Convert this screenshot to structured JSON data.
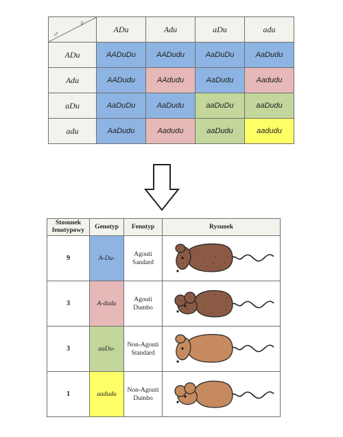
{
  "punnett": {
    "female_symbol": "♀",
    "male_symbol": "♂",
    "col_headers": [
      "ADu",
      "Adu",
      "aDu",
      "adu"
    ],
    "row_headers": [
      "ADu",
      "Adu",
      "aDu",
      "adu"
    ],
    "cells": [
      [
        {
          "text": "AADuDu",
          "color": "blue"
        },
        {
          "text": "AADudu",
          "color": "blue"
        },
        {
          "text": "AaDuDu",
          "color": "blue"
        },
        {
          "text": "AaDudu",
          "color": "blue"
        }
      ],
      [
        {
          "text": "AADudu",
          "color": "blue"
        },
        {
          "text": "AAdudu",
          "color": "pink"
        },
        {
          "text": "AaDudu",
          "color": "blue"
        },
        {
          "text": "Aadudu",
          "color": "pink"
        }
      ],
      [
        {
          "text": "AaDuDu",
          "color": "blue"
        },
        {
          "text": "AaDudu",
          "color": "blue"
        },
        {
          "text": "aaDuDu",
          "color": "green"
        },
        {
          "text": "aaDudu",
          "color": "green"
        }
      ],
      [
        {
          "text": "AaDudu",
          "color": "blue"
        },
        {
          "text": "Aadudu",
          "color": "pink"
        },
        {
          "text": "aaDudu",
          "color": "green"
        },
        {
          "text": "aadudu",
          "color": "yellow"
        }
      ]
    ]
  },
  "colors": {
    "blue": "#8eb4e3",
    "pink": "#e6b9b8",
    "green": "#c3d69b",
    "yellow": "#ffff66"
  },
  "phenotypes": {
    "headers": {
      "ratio": "Stosunek fenotypowy",
      "genotype": "Genotyp",
      "phenotype": "Fenotyp",
      "drawing": "Rysunek"
    },
    "rows": [
      {
        "ratio": "9",
        "genotype": "A-Du-",
        "phenotype_line1": "Agouti",
        "phenotype_line2": "Sandard",
        "color": "blue",
        "mouse": "agouti-standard"
      },
      {
        "ratio": "3",
        "genotype": "A-dudu",
        "phenotype_line1": "Agouti",
        "phenotype_line2": "Dumbo",
        "color": "pink",
        "mouse": "agouti-dumbo"
      },
      {
        "ratio": "3",
        "genotype": "aaDu-",
        "phenotype_line1": "Non-Agouti",
        "phenotype_line2": "Standard",
        "color": "green",
        "mouse": "nonagouti-standard"
      },
      {
        "ratio": "1",
        "genotype": "aadudu",
        "phenotype_line1": "Non-Agouti",
        "phenotype_line2": "Dumbo",
        "color": "yellow",
        "mouse": "nonagouti-dumbo"
      }
    ]
  }
}
